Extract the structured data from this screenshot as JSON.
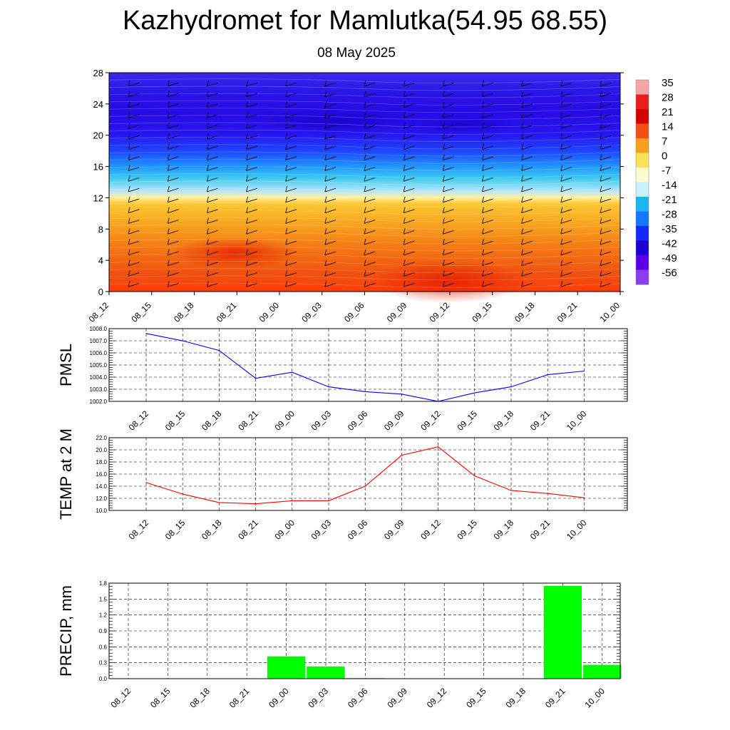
{
  "header": {
    "title": "Kazhydromet for Mamlutka(54.95 68.55)",
    "subtitle": "08 May 2025"
  },
  "chart_data": [
    {
      "type": "heatmap",
      "name": "temperature-wind-cross-section",
      "x_labels": [
        "08_12",
        "08_15",
        "08_18",
        "08_21",
        "09_00",
        "09_03",
        "09_06",
        "09_09",
        "09_12",
        "09_15",
        "09_18",
        "09_21",
        "10_00"
      ],
      "y_ticks": [
        0,
        4,
        8,
        12,
        16,
        20,
        24,
        28
      ],
      "ylim": [
        0,
        28
      ],
      "colorbar": {
        "labels": [
          "35",
          "28",
          "21",
          "14",
          "7",
          "0",
          "-7",
          "-14",
          "-21",
          "-28",
          "-35",
          "-42",
          "-49",
          "-56"
        ],
        "colors": [
          "#f4a6a6",
          "#e81e1e",
          "#d40000",
          "#f05014",
          "#f6a01e",
          "#fce05a",
          "#fffbd0",
          "#c8f0ff",
          "#1eb4f0",
          "#1478ff",
          "#1428ff",
          "#1e00d4",
          "#5a00e6",
          "#8c3cf0"
        ]
      },
      "description_levels": [
        {
          "height": 0,
          "temp_range": [
            14,
            21
          ]
        },
        {
          "height": 12,
          "temp_range": [
            0,
            7
          ]
        },
        {
          "height": 16,
          "temp_range": [
            -28,
            -21
          ]
        },
        {
          "height": 20,
          "temp_range": [
            -56,
            -49
          ]
        },
        {
          "height": 28,
          "temp_range": [
            -56,
            -49
          ]
        }
      ],
      "wind_barbs": true
    },
    {
      "type": "line",
      "ylabel": "PMSL",
      "categories": [
        "08_12",
        "08_15",
        "08_18",
        "08_21",
        "09_00",
        "09_03",
        "09_06",
        "09_09",
        "09_12",
        "09_15",
        "09_18",
        "09_21",
        "10_00"
      ],
      "values": [
        1007.6,
        1007.0,
        1006.2,
        1003.9,
        1004.4,
        1003.2,
        1002.8,
        1002.6,
        1002.0,
        1002.7,
        1003.2,
        1004.2,
        1004.5
      ],
      "ylim": [
        1002.0,
        1008.0
      ],
      "y_ticks": [
        "1002.0",
        "1003.0",
        "1004.0",
        "1005.0",
        "1006.0",
        "1007.0",
        "1008.0"
      ],
      "color": "#0000ff",
      "grid": true
    },
    {
      "type": "line",
      "ylabel": "TEMP at 2 M",
      "categories": [
        "08_12",
        "08_15",
        "08_18",
        "08_21",
        "09_00",
        "09_03",
        "09_06",
        "09_09",
        "09_12",
        "09_15",
        "09_18",
        "09_21",
        "10_00"
      ],
      "values": [
        14.6,
        12.7,
        11.3,
        11.1,
        11.6,
        11.6,
        14.0,
        19.1,
        20.5,
        15.7,
        13.3,
        12.8,
        12.1
      ],
      "ylim": [
        10.0,
        22.0
      ],
      "y_ticks": [
        "10.0",
        "12.0",
        "14.0",
        "16.0",
        "18.0",
        "20.0",
        "22.0"
      ],
      "color": "#ff0000",
      "grid": true
    },
    {
      "type": "bar",
      "ylabel": "PRECIP, mm",
      "categories": [
        "08_12",
        "08_15",
        "08_18",
        "08_21",
        "09_00",
        "09_03",
        "09_06",
        "09_09",
        "09_12",
        "09_15",
        "09_18",
        "09_21",
        "10_00"
      ],
      "values": [
        0,
        0,
        0,
        0,
        0.42,
        0.23,
        0.01,
        0,
        0,
        0,
        0,
        1.75,
        0.26
      ],
      "ylim": [
        0,
        1.8
      ],
      "y_ticks": [
        "0.0",
        "0.3",
        "0.6",
        "0.9",
        "1.2",
        "1.5",
        "1.8"
      ],
      "color": "#00ff00",
      "grid": true
    }
  ]
}
